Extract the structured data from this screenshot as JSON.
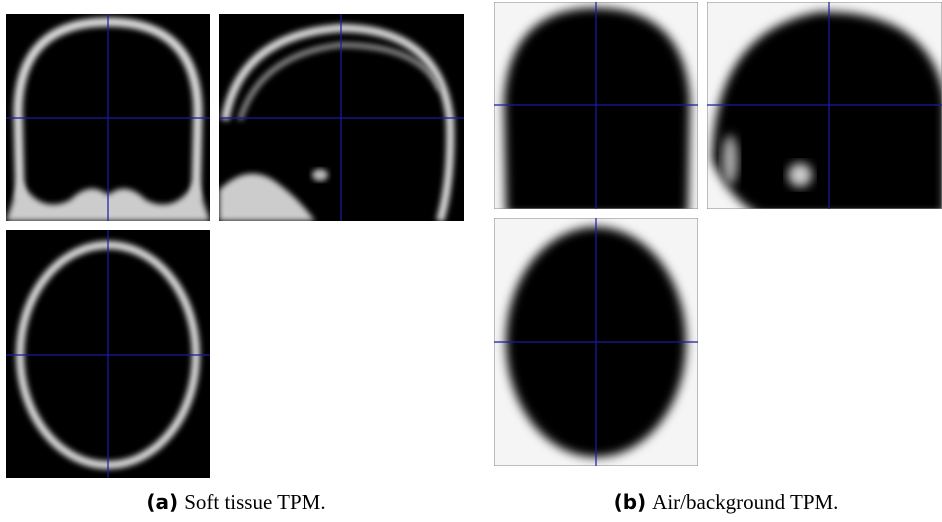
{
  "figure": {
    "subfigures": [
      {
        "label": "(a)",
        "caption": "Soft tissue TPM."
      },
      {
        "label": "(b)",
        "caption": "Air/background TPM."
      }
    ]
  }
}
